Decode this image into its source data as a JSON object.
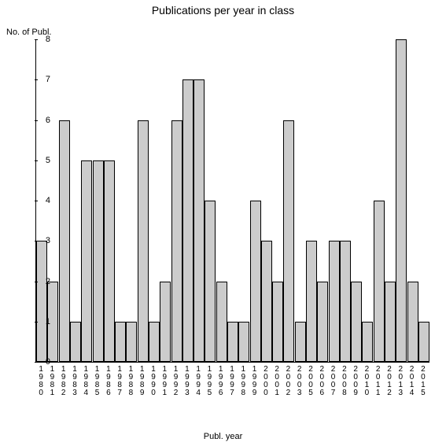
{
  "chart": {
    "type": "bar",
    "title": "Publications per year in class",
    "title_fontsize": 14,
    "ylabel": "No. of Publ.",
    "xlabel": "Publ. year",
    "label_fontsize": 11,
    "ylim": [
      0,
      8
    ],
    "ytick_step": 1,
    "yticks": [
      0,
      1,
      2,
      3,
      4,
      5,
      6,
      7,
      8
    ],
    "categories": [
      "1980",
      "1981",
      "1982",
      "1983",
      "1984",
      "1985",
      "1986",
      "1987",
      "1988",
      "1989",
      "1990",
      "1991",
      "1992",
      "1993",
      "1994",
      "1995",
      "1996",
      "1997",
      "1998",
      "1999",
      "2000",
      "2001",
      "2002",
      "2003",
      "2005",
      "2006",
      "2007",
      "2008",
      "2009",
      "2010",
      "2011",
      "2012",
      "2013",
      "2014",
      "2015"
    ],
    "values": [
      3,
      2,
      6,
      1,
      5,
      5,
      5,
      1,
      1,
      6,
      1,
      2,
      6,
      7,
      7,
      4,
      2,
      1,
      1,
      4,
      3,
      2,
      6,
      1,
      3,
      2,
      3,
      3,
      2,
      1,
      4,
      2,
      8,
      2,
      1
    ],
    "bar_color": "#cccccc",
    "bar_border_color": "#000000",
    "background_color": "#ffffff",
    "axis_color": "#000000",
    "bar_width": 0.98,
    "tick_fontsize": 11,
    "xtick_fontsize": 10
  }
}
